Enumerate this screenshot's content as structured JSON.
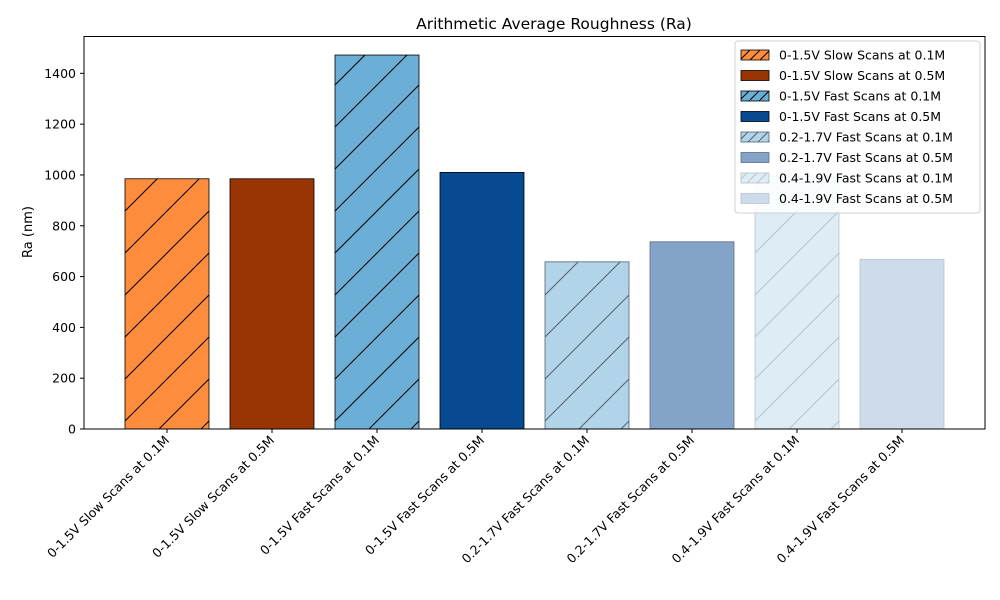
{
  "chart_data": {
    "type": "bar",
    "title": "Arithmetic Average Roughness (Ra)",
    "xlabel": "",
    "ylabel": "Ra (nm)",
    "ylim": [
      0,
      1545
    ],
    "yticks": [
      0,
      200,
      400,
      600,
      800,
      1000,
      1200,
      1400
    ],
    "grid": false,
    "legend_position": "top-right",
    "categories": [
      "0-1.5V Slow Scans at 0.1M",
      "0-1.5V Slow Scans at 0.5M",
      "0-1.5V Fast Scans at 0.1M",
      "0-1.5V Fast Scans at 0.5M",
      "0.2-1.7V Fast Scans at 0.1M",
      "0.2-1.7V Fast Scans at 0.5M",
      "0.4-1.9V Fast Scans at 0.1M",
      "0.4-1.9V Fast Scans at 0.5M"
    ],
    "values": [
      985,
      985,
      1472,
      1010,
      658,
      737,
      995,
      668
    ],
    "colors": [
      "#fd8d3c",
      "#993404",
      "#6baed6",
      "#084a91",
      "#b2d4e8",
      "#83a3c8",
      "#deedf5",
      "#cddbea"
    ],
    "edge_colors": [
      "#000000",
      "#000000",
      "#000000",
      "#000000",
      "#526273",
      "#5e6f82",
      "#b7c2ca",
      "#b8c3cd"
    ],
    "hatched": [
      true,
      false,
      true,
      false,
      true,
      false,
      true,
      false
    ]
  }
}
